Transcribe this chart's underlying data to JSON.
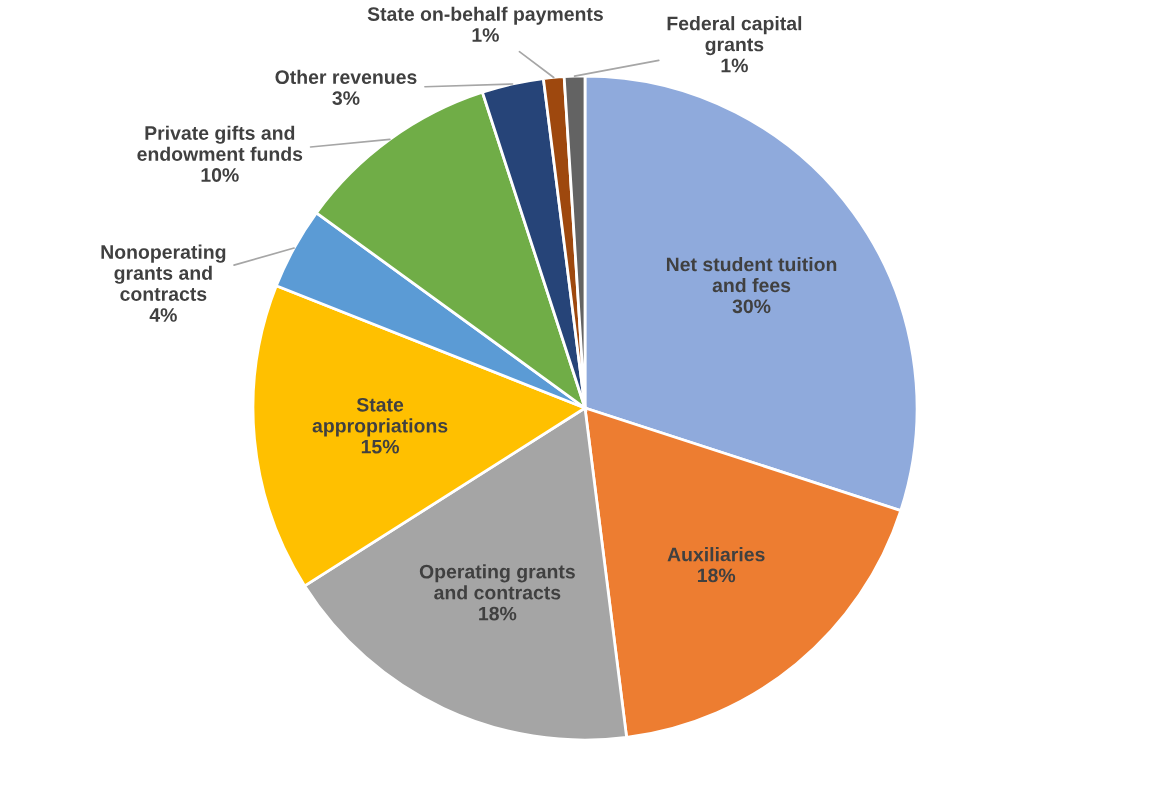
{
  "chart_data": {
    "type": "pie",
    "categories": [
      "Net student tuition and fees",
      "Auxiliaries",
      "Operating grants and contracts",
      "State appropriations",
      "Nonoperating grants and contracts",
      "Private gifts and endowment funds",
      "Other revenues",
      "State on-behalf payments",
      "Federal capital grants"
    ],
    "values": [
      30,
      18,
      18,
      15,
      4,
      10,
      3,
      1,
      1
    ],
    "colors": [
      "#8faadc",
      "#ed7d31",
      "#a5a5a5",
      "#ffc000",
      "#5b9bd5",
      "#70ad47",
      "#264478",
      "#9e480e",
      "#636363"
    ],
    "value_labels": [
      "30%",
      "18%",
      "18%",
      "15%",
      "4%",
      "10%",
      "3%",
      "1%",
      "1%"
    ]
  }
}
